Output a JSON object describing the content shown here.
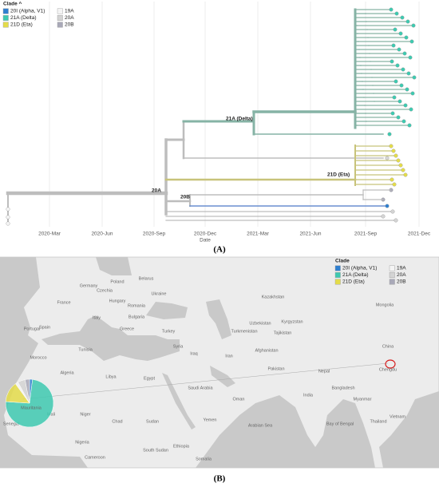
{
  "panel_a": {
    "legend_title": "Clade ^",
    "legend": [
      {
        "name": "20I (Alpha, V1)",
        "color": "#2f7fcf"
      },
      {
        "name": "21A (Delta)",
        "color": "#3ec9b0"
      },
      {
        "name": "21D (Eta)",
        "color": "#e4dc4a"
      },
      {
        "name": "19A",
        "color": "#f4f4f4"
      },
      {
        "name": "20A",
        "color": "#d4d4d4"
      },
      {
        "name": "20B",
        "color": "#a9a9b8"
      }
    ],
    "x_ticks": [
      "2020-Mar",
      "2020-Jun",
      "2020-Sep",
      "2020-Dec",
      "2021-Mar",
      "2021-Jun",
      "2021-Sep",
      "2021-Dec"
    ],
    "x_axis_label": "Date",
    "branch_labels": [
      "20A",
      "20B",
      "21A (Delta)",
      "21D (Eta)"
    ],
    "caption": "(A)"
  },
  "panel_b": {
    "legend_title": "Clade",
    "legend": [
      {
        "name": "20I (Alpha, V1)",
        "color": "#2f7fcf"
      },
      {
        "name": "21A (Delta)",
        "color": "#3ec9b0"
      },
      {
        "name": "21D (Eta)",
        "color": "#e4dc4a"
      },
      {
        "name": "19A",
        "color": "#f4f4f4"
      },
      {
        "name": "20A",
        "color": "#d4d4d4"
      },
      {
        "name": "20B",
        "color": "#a9a9b8"
      }
    ],
    "pie": {
      "location": "Mauritania",
      "values": [
        2,
        74,
        14,
        2,
        5,
        3
      ]
    },
    "places": [
      "Belarus",
      "Poland",
      "Ukraine",
      "Germany",
      "Czechia",
      "France",
      "Hungary",
      "Romania",
      "Italy",
      "Spain",
      "Portugal",
      "Bulgaria",
      "Greece",
      "Turkey",
      "Tunisia",
      "Morocco",
      "Algeria",
      "Libya",
      "Egypt",
      "Syria",
      "Iraq",
      "Iran",
      "Saudi Arabia",
      "Oman",
      "Yemen",
      "Afghanistan",
      "Pakistan",
      "India",
      "Nepal",
      "Bangladesh",
      "Myanmar",
      "Thailand",
      "Vietnam",
      "China",
      "Mongolia",
      "Kazakhstan",
      "Uzbekistan",
      "Kyrgyzstan",
      "Tajikistan",
      "Turkmenistan",
      "Sudan",
      "South Sudan",
      "Chad",
      "Niger",
      "Mali",
      "Nigeria",
      "Cameroon",
      "Ethiopia",
      "Somalia",
      "Arabian Sea",
      "Bay of Bengal",
      "Chengdu",
      "Senegal"
    ],
    "caption": "(B)"
  }
}
